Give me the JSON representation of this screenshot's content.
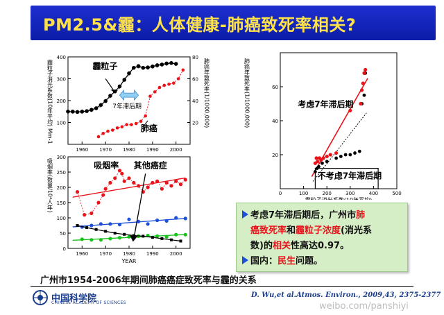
{
  "title": "PM2.5&霾：人体健康-肺癌致死率相关?",
  "caption": "广州市1954-2006年期间肺癌癌症致死率与霾的关系",
  "citation": "D. Wu,et al.Atmos. Environ., 2009,43, 2375-2377",
  "logo": {
    "name": "中国科学院",
    "sub": "CHINESE ACADEMY OF SCIENCES"
  },
  "watermark": "weibo.com/panshiyi",
  "note": {
    "line1": [
      {
        "t": "考虑",
        "c": "black"
      },
      {
        "t": "7",
        "c": "black"
      },
      {
        "t": "年滞后期后，广州市",
        "c": "black"
      },
      {
        "t": "肺",
        "c": "red"
      }
    ],
    "line2": [
      {
        "t": "癌致死率",
        "c": "red"
      },
      {
        "t": "和",
        "c": "black"
      },
      {
        "t": "霾粒子浓度",
        "c": "red"
      },
      {
        "t": "(消光系",
        "c": "black"
      }
    ],
    "line3": [
      {
        "t": "数)的",
        "c": "black"
      },
      {
        "t": "相关",
        "c": "red"
      },
      {
        "t": "性高达",
        "c": "black"
      },
      {
        "t": "0.97",
        "c": "black"
      },
      {
        "t": "。",
        "c": "black"
      }
    ],
    "line4": [
      {
        "t": "国内：",
        "c": "black"
      },
      {
        "t": "民生",
        "c": "red"
      },
      {
        "t": "问题。",
        "c": "black"
      }
    ]
  },
  "chart_data": [
    {
      "type": "line",
      "panel": "top",
      "xlim": [
        1954,
        2006
      ],
      "x_ticks": [
        "1960",
        "1970",
        "1980",
        "1990",
        "2000"
      ],
      "ylim_left": [
        0,
        400
      ],
      "y_ticks_left": [
        "100",
        "200",
        "300",
        "400"
      ],
      "ylim_right": [
        0,
        80
      ],
      "y_ticks_right": [
        "20",
        "40",
        "60",
        "80"
      ],
      "ylabel_left": "霾粒子消光系数(10年平均) Mm-1",
      "ylabel_right": "肺癌年致死率(1/1000,000)",
      "annotations": [
        "霾粒子",
        "7年滞后期",
        "肺癌"
      ],
      "series": [
        {
          "name": "霾粒子",
          "color": "#000000",
          "axis": "left",
          "x": [
            1954,
            1956,
            1958,
            1960,
            1962,
            1964,
            1966,
            1968,
            1970,
            1972,
            1974,
            1976,
            1978,
            1980,
            1982,
            1984,
            1986,
            1988,
            1990,
            1992,
            1994,
            1996,
            1998,
            2000
          ],
          "y": [
            150,
            150,
            148,
            150,
            152,
            158,
            165,
            180,
            198,
            222,
            242,
            265,
            295,
            325,
            350,
            358,
            350,
            352,
            356,
            362,
            365,
            370,
            372,
            368
          ]
        },
        {
          "name": "肺癌",
          "color": "#e8131b",
          "axis": "right",
          "x": [
            1967,
            1969,
            1971,
            1973,
            1975,
            1977,
            1979,
            1981,
            1983,
            1985,
            1987,
            1989,
            1991,
            1993,
            1995,
            1997,
            1999,
            2001,
            2003
          ],
          "y": [
            7,
            10,
            12,
            13,
            15,
            16,
            18,
            18,
            19,
            21,
            26,
            44,
            48,
            52,
            54,
            55,
            56,
            60,
            68
          ]
        }
      ]
    },
    {
      "type": "scatter",
      "panel": "bottom",
      "xlim": [
        1954,
        2006
      ],
      "x_ticks": [
        "1960",
        "1970",
        "1980",
        "1990",
        "2000"
      ],
      "xlabel": "YEAR",
      "ylim": [
        0,
        300
      ],
      "y_ticks": [
        "0",
        "50",
        "100",
        "150",
        "200",
        "250",
        "300"
      ],
      "ylabel": "吸烟率(数量/10⁴人年)",
      "annotations": [
        "吸烟率",
        "其他癌症"
      ],
      "series": [
        {
          "name": "吸烟率",
          "color": "#e8131b",
          "x": [
            1958,
            1961,
            1964,
            1967,
            1969,
            1970,
            1972,
            1974,
            1976,
            1977,
            1978,
            1980,
            1982,
            1984,
            1986,
            1988,
            1990,
            1992,
            1994,
            1996,
            1998,
            2000,
            2002,
            2004
          ],
          "y": [
            185,
            110,
            115,
            150,
            175,
            195,
            215,
            230,
            255,
            245,
            220,
            230,
            215,
            205,
            185,
            200,
            215,
            220,
            195,
            215,
            205,
            220,
            210,
            225
          ]
        },
        {
          "name": "blue",
          "color": "#1d4fd8",
          "x": [
            1960,
            1964,
            1968,
            1972,
            1976,
            1980,
            1984,
            1988,
            1992,
            1996,
            2000,
            2004
          ],
          "y": [
            70,
            75,
            80,
            80,
            78,
            95,
            88,
            80,
            92,
            90,
            100,
            98
          ]
        },
        {
          "name": "green",
          "color": "#14c21a",
          "x": [
            1960,
            1964,
            1968,
            1972,
            1976,
            1980,
            1984,
            1988,
            1992,
            1996,
            2000,
            2004
          ],
          "y": [
            30,
            28,
            28,
            32,
            35,
            38,
            40,
            42,
            40,
            38,
            45,
            45
          ]
        },
        {
          "name": "其他癌症",
          "color": "#000000",
          "x": [
            1958,
            1962,
            1966,
            1970,
            1974,
            1978,
            1982,
            1986,
            1990,
            1994,
            1998,
            2002
          ],
          "y": [
            75,
            68,
            62,
            56,
            50,
            46,
            42,
            40,
            36,
            32,
            28,
            24
          ]
        }
      ]
    },
    {
      "type": "scatter",
      "panel": "right",
      "xlim": [
        0,
        500
      ],
      "x_ticks": [
        "0",
        "100",
        "200",
        "300",
        "400",
        "500"
      ],
      "xlabel": "霾粒子消光系数(10年平均)",
      "ylim": [
        0,
        80
      ],
      "y_ticks": [
        "20",
        "40",
        "60"
      ],
      "ylabel": "肺癌年致死率(1/1000,000)",
      "annotations": [
        "考虑7年滞后期",
        "不考虑7年滞后期"
      ],
      "series": [
        {
          "name": "考虑7年滞后期",
          "color": "#e8131b",
          "x": [
            150,
            155,
            160,
            168,
            175,
            185,
            200,
            215,
            240,
            300,
            345,
            350,
            355,
            360,
            365
          ],
          "y": [
            15,
            18,
            16,
            18,
            17,
            18,
            19,
            20,
            21,
            46,
            50,
            58,
            62,
            68,
            70
          ]
        },
        {
          "name": "不考虑7年滞后期",
          "color": "#000000",
          "x": [
            150,
            158,
            165,
            180,
            200,
            240,
            260,
            280,
            300,
            320,
            340,
            350,
            360,
            365
          ],
          "y": [
            10,
            12,
            13,
            15,
            16,
            18,
            19,
            20,
            20,
            21,
            22,
            50,
            55,
            68
          ]
        }
      ]
    }
  ]
}
